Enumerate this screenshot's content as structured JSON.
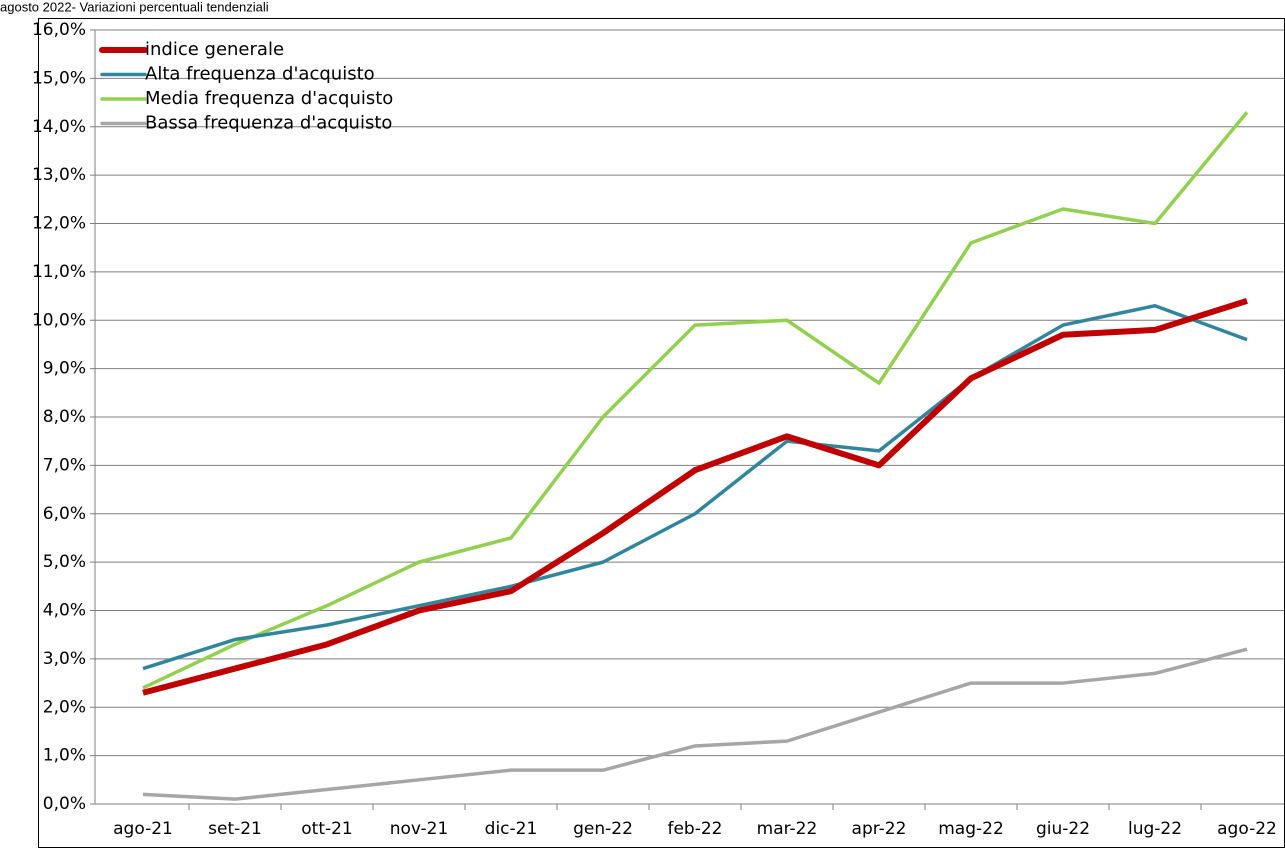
{
  "chart_data": {
    "type": "line",
    "title": "agosto 2022- Variazioni percentuali tendenziali",
    "categories": [
      "ago-21",
      "set-21",
      "ott-21",
      "nov-21",
      "dic-21",
      "gen-22",
      "feb-22",
      "mar-22",
      "apr-22",
      "mag-22",
      "giu-22",
      "lug-22",
      "ago-22"
    ],
    "series": [
      {
        "name": "indice generale",
        "color": "#c00000",
        "values": [
          2.3,
          2.8,
          3.3,
          4.0,
          4.4,
          5.6,
          6.9,
          7.6,
          7.0,
          8.8,
          9.7,
          9.8,
          10.4
        ]
      },
      {
        "name": "Alta frequenza d'acquisto",
        "color": "#31859c",
        "values": [
          2.8,
          3.4,
          3.7,
          4.1,
          4.5,
          5.0,
          6.0,
          7.5,
          7.3,
          8.8,
          9.9,
          10.3,
          9.6
        ]
      },
      {
        "name": "Media frequenza d'acquisto",
        "color": "#92d050",
        "values": [
          2.4,
          3.3,
          4.1,
          5.0,
          5.5,
          8.0,
          9.9,
          10.0,
          8.7,
          11.6,
          12.3,
          12.0,
          14.3
        ]
      },
      {
        "name": "Bassa frequenza d'acquisto",
        "color": "#a6a6a6",
        "values": [
          0.2,
          0.1,
          0.3,
          0.5,
          0.7,
          0.7,
          1.2,
          1.3,
          1.9,
          2.5,
          2.5,
          2.7,
          3.2
        ]
      }
    ],
    "ylim": [
      0,
      16
    ],
    "yticks": [
      {
        "value": 0,
        "label": "0,0%"
      },
      {
        "value": 1,
        "label": "1,0%"
      },
      {
        "value": 2,
        "label": "2,0%"
      },
      {
        "value": 3,
        "label": "3,0%"
      },
      {
        "value": 4,
        "label": "4,0%"
      },
      {
        "value": 5,
        "label": "5,0%"
      },
      {
        "value": 6,
        "label": "6,0%"
      },
      {
        "value": 7,
        "label": "7,0%"
      },
      {
        "value": 8,
        "label": "8,0%"
      },
      {
        "value": 9,
        "label": "9,0%"
      },
      {
        "value": 10,
        "label": "10,0%"
      },
      {
        "value": 11,
        "label": "11,0%"
      },
      {
        "value": 12,
        "label": "12,0%"
      },
      {
        "value": 13,
        "label": "13,0%"
      },
      {
        "value": 14,
        "label": "14,0%"
      },
      {
        "value": 15,
        "label": "15,0%"
      },
      {
        "value": 16,
        "label": "16,0%"
      }
    ],
    "grid": true,
    "legend": "top-left"
  }
}
